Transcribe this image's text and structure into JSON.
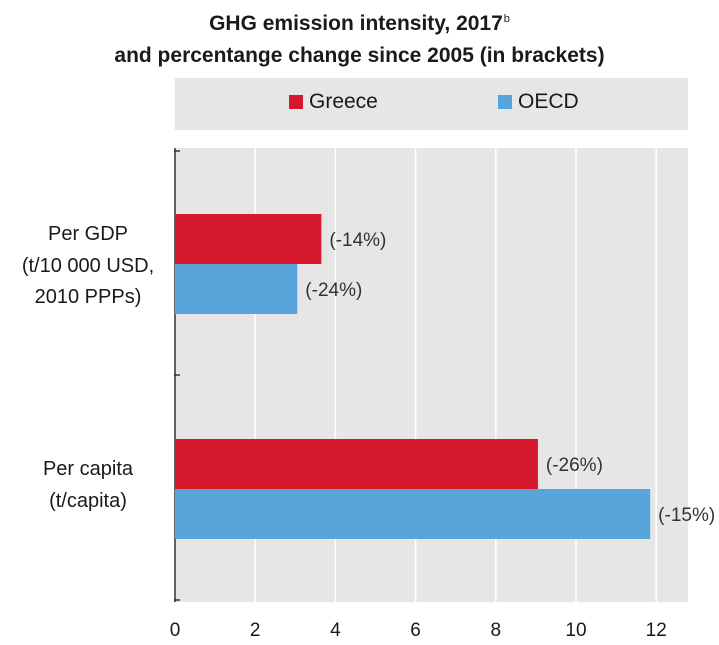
{
  "chart_data": {
    "type": "bar",
    "orientation": "horizontal",
    "title_line1": "GHG emission intensity, 2017",
    "title_sup": "b",
    "title_line2": "and percentange change since 2005 (in brackets)",
    "xlabel": "",
    "ylabel": "",
    "xlim": [
      0,
      12.8
    ],
    "xticks": [
      0,
      2,
      4,
      6,
      8,
      10,
      12
    ],
    "grid": "vertical",
    "legend_position": "top",
    "categories": [
      {
        "lines": [
          "Per GDP",
          "(t/10 000 USD,",
          "2010 PPPs)"
        ]
      },
      {
        "lines": [
          "Per capita",
          "(t/capita)"
        ]
      }
    ],
    "series": [
      {
        "name": "Greece",
        "color": "#d7192e",
        "values": [
          3.65,
          9.05
        ],
        "labels": [
          "(-14%)",
          "(-26%)"
        ]
      },
      {
        "name": "OECD",
        "color": "#58a5db",
        "values": [
          3.05,
          11.85
        ],
        "labels": [
          "(-24%)",
          "(-15%)"
        ]
      }
    ]
  }
}
